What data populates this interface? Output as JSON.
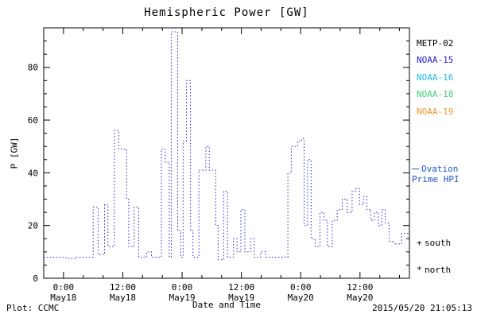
{
  "title": "Hemispheric Power [GW]",
  "footer": {
    "left": "Plot: CCMC",
    "right": "2015/05/20 21:05:13"
  },
  "legend": {
    "satellites": [
      {
        "label": "METP-02",
        "color": "#000000"
      },
      {
        "label": "NOAA-15",
        "color": "#2323cc"
      },
      {
        "label": "NOAA-16",
        "color": "#22bbee"
      },
      {
        "label": "NOAA-18",
        "color": "#44cc77"
      },
      {
        "label": "NOAA-19",
        "color": "#ee9933"
      }
    ],
    "ovation": {
      "line1": "Ovation",
      "line2": "Prime HPI",
      "color": "#2255cc"
    },
    "markers": [
      {
        "symbol": "+",
        "label": "south"
      },
      {
        "symbol": "*",
        "label": "north"
      }
    ]
  },
  "chart_data": {
    "type": "line",
    "title": "Hemispheric Power [GW]",
    "xlabel": "Date and Time",
    "ylabel": "P [GW]",
    "xlim": [
      -4,
      70
    ],
    "ylim": [
      0,
      95
    ],
    "x_tick_hours": [
      0,
      12,
      24,
      36,
      48,
      60
    ],
    "x_tick_labels": [
      {
        "time": "0:00",
        "date": "May18"
      },
      {
        "time": "12:00",
        "date": "May18"
      },
      {
        "time": "0:00",
        "date": "May19"
      },
      {
        "time": "12:00",
        "date": "May19"
      },
      {
        "time": "0:00",
        "date": "May20"
      },
      {
        "time": "12:00",
        "date": "May20"
      }
    ],
    "y_ticks": [
      0,
      20,
      40,
      60,
      80
    ],
    "x_unit": "hours since 2015-05-18 00:00",
    "grid": false,
    "line_style": "dotted",
    "series": [
      {
        "name": "Ovation Prime HPI (NOAA-15)",
        "color": "#2323cc",
        "points": [
          [
            -4,
            8
          ],
          [
            0.5,
            8
          ],
          [
            0.5,
            7.5
          ],
          [
            2.5,
            7.5
          ],
          [
            2.5,
            8
          ],
          [
            6,
            8
          ],
          [
            6,
            27
          ],
          [
            7,
            27
          ],
          [
            7,
            9
          ],
          [
            8.3,
            9
          ],
          [
            8.3,
            28
          ],
          [
            9,
            28
          ],
          [
            9,
            12
          ],
          [
            10.3,
            12
          ],
          [
            10.3,
            56
          ],
          [
            11.2,
            56
          ],
          [
            11.2,
            49
          ],
          [
            12.8,
            49
          ],
          [
            12.8,
            30
          ],
          [
            13.2,
            30
          ],
          [
            13.2,
            12
          ],
          [
            14.3,
            12
          ],
          [
            14.3,
            27
          ],
          [
            15.2,
            27
          ],
          [
            15.2,
            8
          ],
          [
            16.8,
            8
          ],
          [
            16.8,
            10
          ],
          [
            17.8,
            10
          ],
          [
            17.8,
            8
          ],
          [
            19.8,
            8
          ],
          [
            19.8,
            49
          ],
          [
            20.6,
            49
          ],
          [
            20.6,
            44
          ],
          [
            21.4,
            44
          ],
          [
            21.4,
            8
          ],
          [
            21.8,
            8
          ],
          [
            21.8,
            93.5
          ],
          [
            23.1,
            93.5
          ],
          [
            23.1,
            18
          ],
          [
            23.7,
            18
          ],
          [
            23.7,
            8
          ],
          [
            24.2,
            8
          ],
          [
            24.2,
            52
          ],
          [
            24.9,
            52
          ],
          [
            24.9,
            75
          ],
          [
            25.7,
            75
          ],
          [
            25.7,
            18
          ],
          [
            26.2,
            18
          ],
          [
            26.2,
            8
          ],
          [
            27.4,
            8
          ],
          [
            27.4,
            41
          ],
          [
            28.8,
            41
          ],
          [
            28.8,
            50
          ],
          [
            29.5,
            50
          ],
          [
            29.5,
            41
          ],
          [
            30.8,
            41
          ],
          [
            30.8,
            20
          ],
          [
            31.3,
            20
          ],
          [
            31.3,
            7
          ],
          [
            32.4,
            7
          ],
          [
            32.4,
            33
          ],
          [
            33.2,
            33
          ],
          [
            33.2,
            8
          ],
          [
            34.4,
            8
          ],
          [
            34.4,
            15
          ],
          [
            35.1,
            15
          ],
          [
            35.1,
            10
          ],
          [
            35.9,
            10
          ],
          [
            35.9,
            26
          ],
          [
            36.7,
            26
          ],
          [
            36.7,
            10
          ],
          [
            37.9,
            10
          ],
          [
            37.9,
            15
          ],
          [
            38.6,
            15
          ],
          [
            38.6,
            8
          ],
          [
            39.9,
            8
          ],
          [
            39.9,
            10
          ],
          [
            40.9,
            10
          ],
          [
            40.9,
            8
          ],
          [
            45.4,
            8
          ],
          [
            45.4,
            40
          ],
          [
            46.1,
            40
          ],
          [
            46.1,
            50
          ],
          [
            47.4,
            50
          ],
          [
            47.4,
            52
          ],
          [
            48.2,
            52
          ],
          [
            48.2,
            53
          ],
          [
            48.7,
            53
          ],
          [
            48.7,
            20
          ],
          [
            49.4,
            20
          ],
          [
            49.4,
            45
          ],
          [
            50.1,
            45
          ],
          [
            50.1,
            15
          ],
          [
            50.9,
            15
          ],
          [
            50.9,
            12
          ],
          [
            51.9,
            12
          ],
          [
            51.9,
            25
          ],
          [
            52.7,
            25
          ],
          [
            52.7,
            22
          ],
          [
            53.4,
            22
          ],
          [
            53.4,
            12
          ],
          [
            54.4,
            12
          ],
          [
            54.4,
            22
          ],
          [
            55.4,
            22
          ],
          [
            55.4,
            26
          ],
          [
            56.4,
            26
          ],
          [
            56.4,
            30
          ],
          [
            57.4,
            30
          ],
          [
            57.4,
            25
          ],
          [
            58.4,
            25
          ],
          [
            58.4,
            33
          ],
          [
            59.2,
            33
          ],
          [
            59.2,
            34
          ],
          [
            59.9,
            34
          ],
          [
            59.9,
            28
          ],
          [
            60.7,
            28
          ],
          [
            60.7,
            31
          ],
          [
            61.4,
            31
          ],
          [
            61.4,
            26
          ],
          [
            62.2,
            26
          ],
          [
            62.2,
            22
          ],
          [
            62.9,
            22
          ],
          [
            62.9,
            25
          ],
          [
            63.7,
            25
          ],
          [
            63.7,
            20
          ],
          [
            64.4,
            20
          ],
          [
            64.4,
            26
          ],
          [
            65.1,
            26
          ],
          [
            65.1,
            21
          ],
          [
            65.9,
            21
          ],
          [
            65.9,
            14
          ],
          [
            66.9,
            14
          ],
          [
            66.9,
            13
          ],
          [
            68.4,
            13
          ],
          [
            68.4,
            17
          ],
          [
            70,
            17
          ]
        ]
      }
    ]
  }
}
